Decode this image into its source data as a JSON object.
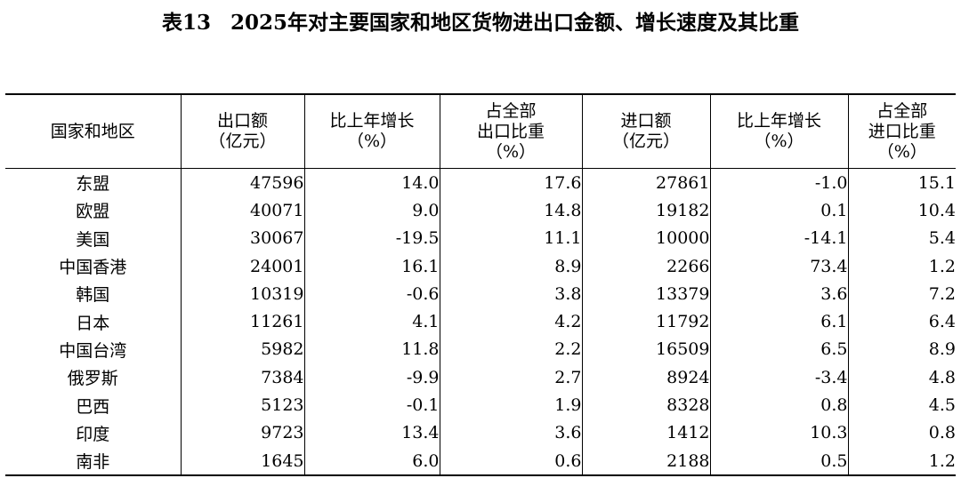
{
  "title": {
    "table_no": "表13",
    "text": "2025年对主要国家和地区货物进出口金额、增长速度及其比重"
  },
  "columns": [
    {
      "lines": [
        "国家和地区"
      ]
    },
    {
      "lines": [
        "出口额",
        "（亿元）"
      ]
    },
    {
      "lines": [
        "比上年增长",
        "（%）"
      ]
    },
    {
      "lines": [
        "占全部",
        "出口比重",
        "（%）"
      ]
    },
    {
      "lines": [
        "进口额",
        "（亿元）"
      ]
    },
    {
      "lines": [
        "比上年增长",
        "（%）"
      ]
    },
    {
      "lines": [
        "占全部",
        "进口比重",
        "（%）"
      ]
    }
  ],
  "rows": [
    {
      "region": "东盟",
      "export": "47596",
      "export_growth": "14.0",
      "export_share": "17.6",
      "import": "27861",
      "import_growth": "-1.0",
      "import_share": "15.1"
    },
    {
      "region": "欧盟",
      "export": "40071",
      "export_growth": "9.0",
      "export_share": "14.8",
      "import": "19182",
      "import_growth": "0.1",
      "import_share": "10.4"
    },
    {
      "region": "美国",
      "export": "30067",
      "export_growth": "-19.5",
      "export_share": "11.1",
      "import": "10000",
      "import_growth": "-14.1",
      "import_share": "5.4"
    },
    {
      "region": "中国香港",
      "export": "24001",
      "export_growth": "16.1",
      "export_share": "8.9",
      "import": "2266",
      "import_growth": "73.4",
      "import_share": "1.2"
    },
    {
      "region": "韩国",
      "export": "10319",
      "export_growth": "-0.6",
      "export_share": "3.8",
      "import": "13379",
      "import_growth": "3.6",
      "import_share": "7.2"
    },
    {
      "region": "日本",
      "export": "11261",
      "export_growth": "4.1",
      "export_share": "4.2",
      "import": "11792",
      "import_growth": "6.1",
      "import_share": "6.4"
    },
    {
      "region": "中国台湾",
      "export": "5982",
      "export_growth": "11.8",
      "export_share": "2.2",
      "import": "16509",
      "import_growth": "6.5",
      "import_share": "8.9"
    },
    {
      "region": "俄罗斯",
      "export": "7384",
      "export_growth": "-9.9",
      "export_share": "2.7",
      "import": "8924",
      "import_growth": "-3.4",
      "import_share": "4.8"
    },
    {
      "region": "巴西",
      "export": "5123",
      "export_growth": "-0.1",
      "export_share": "1.9",
      "import": "8328",
      "import_growth": "0.8",
      "import_share": "4.5"
    },
    {
      "region": "印度",
      "export": "9723",
      "export_growth": "13.4",
      "export_share": "3.6",
      "import": "1412",
      "import_growth": "10.3",
      "import_share": "0.8"
    },
    {
      "region": "南非",
      "export": "1645",
      "export_growth": "6.0",
      "export_share": "0.6",
      "import": "2188",
      "import_growth": "0.5",
      "import_share": "1.2"
    }
  ]
}
